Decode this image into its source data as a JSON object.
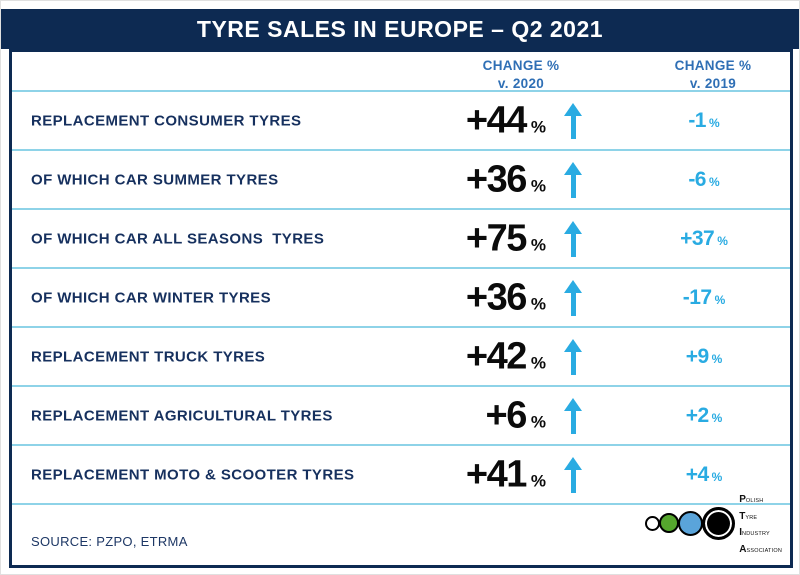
{
  "title": "TYRE SALES IN EUROPE – Q2 2021",
  "percent_sign": "%",
  "columns": {
    "change_2020": {
      "line1": "CHANGE %",
      "line2": "v. 2020"
    },
    "change_2019": {
      "line1": "CHANGE %",
      "line2": "v. 2019"
    }
  },
  "rows": [
    {
      "label": "REPLACEMENT CONSUMER TYRES",
      "change_2020": "+44",
      "arrow": "up",
      "change_2019": "-1"
    },
    {
      "label": "OF WHICH CAR SUMMER TYRES",
      "change_2020": "+36",
      "arrow": "up",
      "change_2019": "-6"
    },
    {
      "label": "OF WHICH CAR ALL SEASONS  TYRES",
      "change_2020": "+75",
      "arrow": "up",
      "change_2019": "+37"
    },
    {
      "label": "OF WHICH CAR WINTER TYRES",
      "change_2020": "+36",
      "arrow": "up",
      "change_2019": "-17"
    },
    {
      "label": "REPLACEMENT TRUCK TYRES",
      "change_2020": "+42",
      "arrow": "up",
      "change_2019": "+9"
    },
    {
      "label": "REPLACEMENT AGRICULTURAL TYRES",
      "change_2020": "+6",
      "arrow": "up",
      "change_2019": "+2"
    },
    {
      "label": "REPLACEMENT MOTO & SCOOTER TYRES",
      "change_2020": "+41",
      "arrow": "up",
      "change_2019": "+4"
    }
  ],
  "source": "SOURCE: PZPO, ETRMA",
  "logo": {
    "lines": [
      {
        "initial": "P",
        "rest": "OLISH"
      },
      {
        "initial": "T",
        "rest": "YRE"
      },
      {
        "initial": "I",
        "rest": "NDUSTRY"
      },
      {
        "initial": "A",
        "rest": "SSOCIATION"
      }
    ]
  },
  "colors": {
    "navy": "#0d2a52",
    "header_blue": "#2f6fb5",
    "accent_cyan": "#29abe2",
    "separator_cyan": "#8ed3e8",
    "value_black": "#0b0b0b",
    "logo_green": "#55a62d",
    "logo_blue": "#5aa4da"
  },
  "chart_data": {
    "type": "table",
    "title": "TYRE SALES IN EUROPE – Q2 2021",
    "columns": [
      "Category",
      "Change % v. 2020",
      "Change % v. 2019"
    ],
    "rows": [
      [
        "REPLACEMENT CONSUMER TYRES",
        44,
        -1
      ],
      [
        "OF WHICH CAR SUMMER TYRES",
        36,
        -6
      ],
      [
        "OF WHICH CAR ALL SEASONS TYRES",
        75,
        37
      ],
      [
        "OF WHICH CAR WINTER TYRES",
        36,
        -17
      ],
      [
        "REPLACEMENT TRUCK TYRES",
        42,
        9
      ],
      [
        "REPLACEMENT AGRICULTURAL TYRES",
        6,
        2
      ],
      [
        "REPLACEMENT MOTO & SCOOTER TYRES",
        41,
        4
      ]
    ],
    "notes": "All 'Change % v. 2020' values shown with cyan up arrows",
    "source": "SOURCE: PZPO, ETRMA"
  }
}
